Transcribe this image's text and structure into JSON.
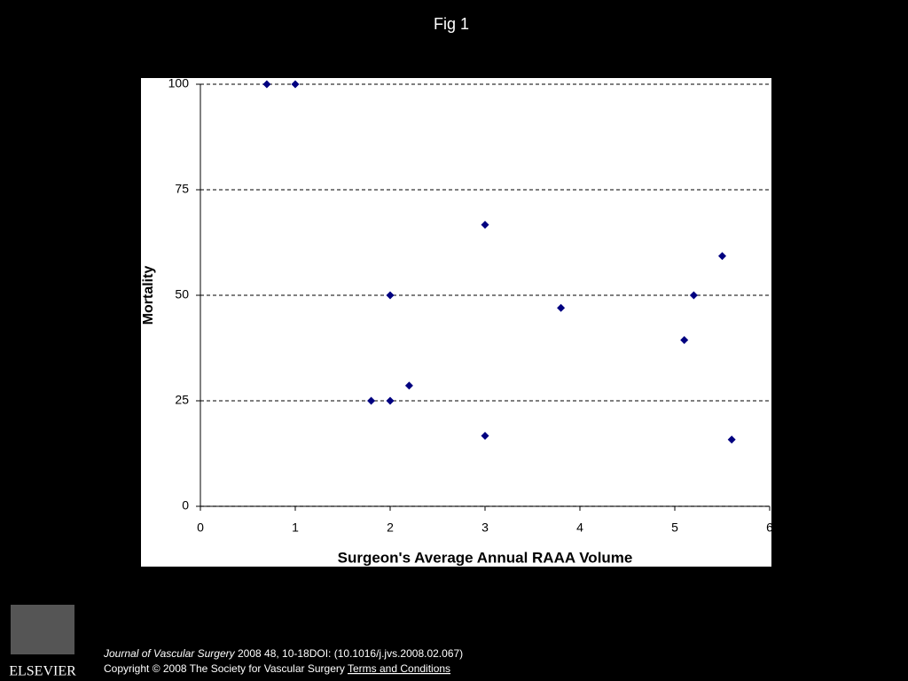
{
  "slide_title": "Fig 1",
  "chart_data": {
    "type": "scatter",
    "x_label": "Surgeon's Average Annual RAAA Volume",
    "y_label": "Mortality",
    "series": [
      {
        "color": "#000080",
        "x": [
          0.7,
          1,
          1.8,
          2,
          2,
          2.2,
          3,
          3,
          3.8,
          5.1,
          5.2,
          5.5,
          5.6
        ],
        "values": [
          100,
          100,
          25,
          25,
          50,
          28.6,
          66.7,
          16.7,
          47,
          39.4,
          50,
          59.3,
          15.8
        ]
      }
    ],
    "xlim": [
      0,
      6
    ],
    "xticks": [
      0,
      1,
      2,
      3,
      4,
      5,
      6
    ],
    "ylim": [
      0,
      100
    ],
    "yticks": [
      0,
      25,
      50,
      75,
      100
    ],
    "grid": true
  },
  "citation": {
    "journal": "Journal of Vascular Surgery",
    "reference": "2008 48, 10-18DOI: (10.1016/j.jvs.2008.02.067)",
    "copyright": "Copyright © 2008 The Society for Vascular Surgery",
    "link": "Terms and Conditions"
  },
  "logo_text": "ELSEVIER"
}
